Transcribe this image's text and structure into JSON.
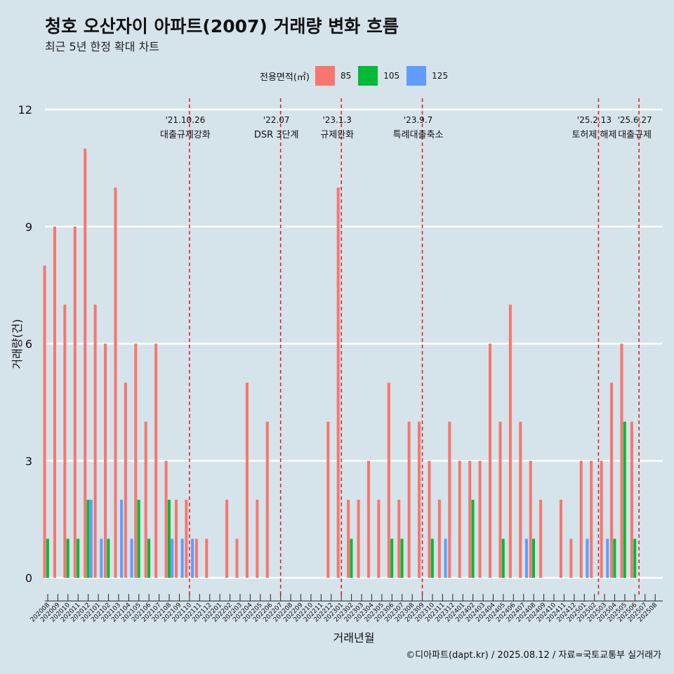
{
  "header": {
    "title": "청호 오산자이 아파트(2007) 거래량 변화 흐름",
    "subtitle": "최근 5년 한정 확대 차트"
  },
  "legend": {
    "title": "전용면적(㎡)",
    "items": [
      {
        "label": "85",
        "color": "#f8766d"
      },
      {
        "label": "105",
        "color": "#00ba38"
      },
      {
        "label": "125",
        "color": "#619cff"
      }
    ]
  },
  "caption": "©디아파트(dapt.kr) / 2025.08.12 / 자료=국토교통부 실거래가",
  "chart_data": {
    "type": "bar",
    "xlabel": "거래년월",
    "ylabel": "거래량(건)",
    "ylim": [
      0,
      12
    ],
    "yticks": [
      0,
      3,
      6,
      9,
      12
    ],
    "categories": [
      "202008",
      "202009",
      "202010",
      "202011",
      "202012",
      "202101",
      "202102",
      "202103",
      "202104",
      "202105",
      "202106",
      "202107",
      "202108",
      "202109",
      "202110",
      "202111",
      "202112",
      "202201",
      "202202",
      "202203",
      "202204",
      "202205",
      "202206",
      "202207",
      "202208",
      "202209",
      "202210",
      "202211",
      "202212",
      "202301",
      "202302",
      "202303",
      "202304",
      "202305",
      "202306",
      "202307",
      "202308",
      "202309",
      "202310",
      "202311",
      "202312",
      "202401",
      "202402",
      "202403",
      "202404",
      "202405",
      "202406",
      "202407",
      "202408",
      "202409",
      "202410",
      "202411",
      "202412",
      "202501",
      "202502",
      "202503",
      "202504",
      "202505",
      "202506",
      "202507",
      "202508"
    ],
    "series": [
      {
        "name": "85",
        "color": "#f8766d",
        "values": [
          8,
          9,
          7,
          9,
          11,
          7,
          6,
          10,
          5,
          6,
          4,
          6,
          3,
          2,
          2,
          1,
          1,
          0,
          2,
          1,
          5,
          2,
          4,
          0,
          0,
          0,
          0,
          0,
          4,
          10,
          2,
          2,
          3,
          2,
          5,
          2,
          4,
          4,
          3,
          2,
          4,
          3,
          3,
          3,
          6,
          4,
          7,
          4,
          3,
          2,
          0,
          2,
          1,
          3,
          3,
          3,
          5,
          6,
          4,
          0,
          0
        ]
      },
      {
        "name": "105",
        "color": "#00ba38",
        "values": [
          1,
          0,
          1,
          1,
          2,
          0,
          1,
          0,
          0,
          2,
          1,
          0,
          2,
          0,
          0,
          0,
          0,
          0,
          0,
          0,
          0,
          0,
          0,
          0,
          0,
          0,
          0,
          0,
          0,
          0,
          1,
          0,
          0,
          0,
          1,
          1,
          0,
          0,
          1,
          0,
          0,
          0,
          2,
          0,
          0,
          1,
          0,
          0,
          1,
          0,
          0,
          0,
          0,
          0,
          0,
          0,
          1,
          4,
          1,
          0,
          0
        ]
      },
      {
        "name": "125",
        "color": "#619cff",
        "values": [
          0,
          0,
          0,
          0,
          2,
          1,
          0,
          2,
          1,
          0,
          0,
          0,
          1,
          1,
          1,
          0,
          0,
          0,
          0,
          0,
          0,
          0,
          0,
          0,
          0,
          0,
          0,
          0,
          0,
          0,
          0,
          0,
          0,
          0,
          0,
          0,
          0,
          0,
          0,
          1,
          0,
          0,
          0,
          0,
          0,
          0,
          0,
          1,
          0,
          0,
          0,
          0,
          0,
          1,
          0,
          1,
          0,
          0,
          0,
          0,
          0
        ]
      }
    ],
    "annotations": [
      {
        "date": "'21.10.26",
        "label": "대출규제강화",
        "index": 14.0
      },
      {
        "date": "'22.07",
        "label": "DSR 3단계",
        "index": 23.0
      },
      {
        "date": "'23.1.3",
        "label": "규제완화",
        "index": 29.0
      },
      {
        "date": "'23.9.7",
        "label": "특례대출축소",
        "index": 37.0
      },
      {
        "date": "'25.2.13",
        "label": "토허제 해제",
        "index": 54.4
      },
      {
        "date": "'25.6.27",
        "label": "대출규제",
        "index": 58.4
      }
    ],
    "grid": true,
    "legend_position": "top"
  }
}
